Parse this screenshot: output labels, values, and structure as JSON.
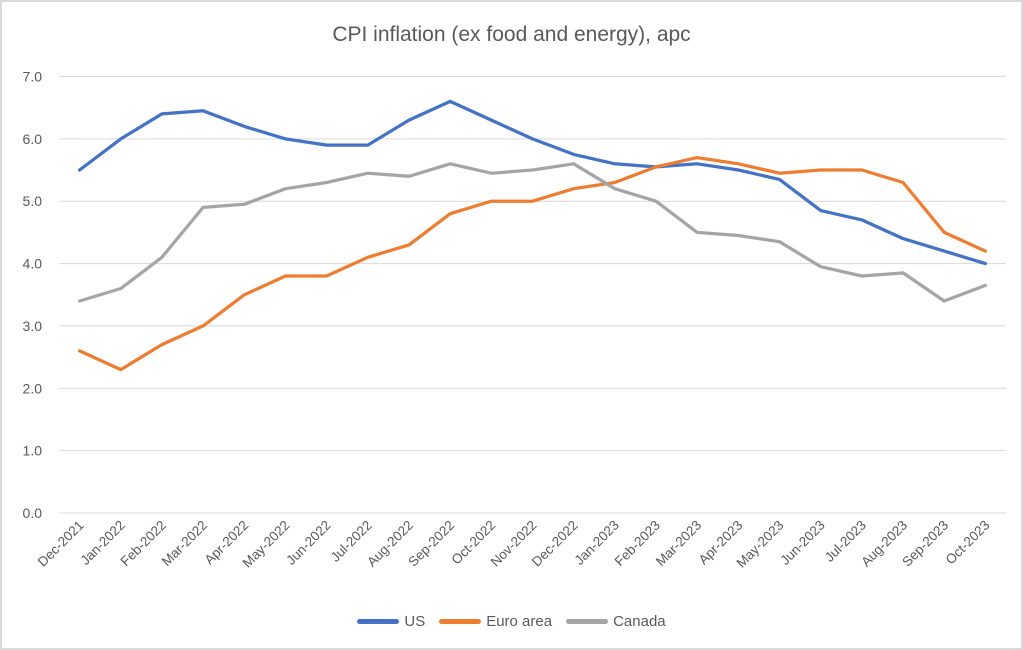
{
  "window": {
    "background": "#FFFFFF",
    "border_color": "#D9D9D9"
  },
  "chart_data": {
    "type": "line",
    "title": "CPI inflation (ex food and energy), apc",
    "xlabel": "",
    "ylabel": "",
    "ylim": [
      0.0,
      7.0
    ],
    "grid": "horizontal",
    "gridline_color": "#D9D9D9",
    "text_color": "#595959",
    "legend_position": "bottom",
    "y_ticks": [
      0,
      1,
      2,
      3,
      4,
      5,
      6,
      7
    ],
    "y_tick_labels": [
      "0.0",
      "1.0",
      "2.0",
      "3.0",
      "4.0",
      "5.0",
      "6.0",
      "7.0"
    ],
    "categories": [
      "Dec-2021",
      "Jan-2022",
      "Feb-2022",
      "Mar-2022",
      "Apr-2022",
      "May-2022",
      "Jun-2022",
      "Jul-2022",
      "Aug-2022",
      "Sep-2022",
      "Oct-2022",
      "Nov-2022",
      "Dec-2022",
      "Jan-2023",
      "Feb-2023",
      "Mar-2023",
      "Apr-2023",
      "May-2023",
      "Jun-2023",
      "Jul-2023",
      "Aug-2023",
      "Sep-2023",
      "Oct-2023"
    ],
    "series": [
      {
        "name": "US",
        "color": "#4472C4",
        "values": [
          5.5,
          6.0,
          6.4,
          6.45,
          6.2,
          6.0,
          5.9,
          5.9,
          6.3,
          6.6,
          6.3,
          6.0,
          5.75,
          5.6,
          5.55,
          5.6,
          5.5,
          5.35,
          4.85,
          4.7,
          4.4,
          4.2,
          4.0
        ]
      },
      {
        "name": "Euro area",
        "color": "#ED7D31",
        "values": [
          2.6,
          2.3,
          2.7,
          3.0,
          3.5,
          3.8,
          3.8,
          4.1,
          4.3,
          4.8,
          5.0,
          5.0,
          5.2,
          5.3,
          5.55,
          5.7,
          5.6,
          5.45,
          5.5,
          5.5,
          5.3,
          4.5,
          4.2
        ]
      },
      {
        "name": "Canada",
        "color": "#A5A5A5",
        "values": [
          3.4,
          3.6,
          4.1,
          4.9,
          4.95,
          5.2,
          5.3,
          5.45,
          5.4,
          5.6,
          5.45,
          5.5,
          5.6,
          5.2,
          5.0,
          4.5,
          4.45,
          4.35,
          3.95,
          3.8,
          3.85,
          3.4,
          3.65
        ]
      }
    ]
  }
}
